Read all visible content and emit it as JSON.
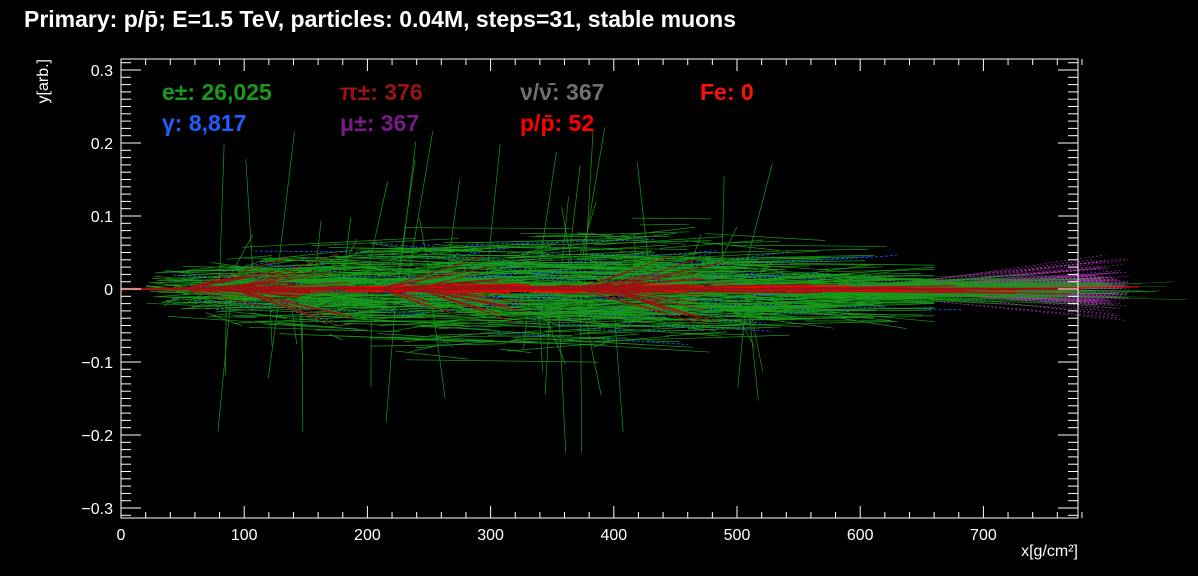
{
  "title": "Primary: p/p̄; E=1.5 TeV, particles: 0.04M, steps=31, stable muons",
  "colors": {
    "background": "#000000",
    "axis": "#ffffff",
    "electron": "#1a9a1a",
    "gamma": "#1f5fff",
    "pion": "#9a1414",
    "muon": "#7a1a8a",
    "muon_band": "#b03ab8",
    "neutrino": "#707070",
    "proton": "#ff0000",
    "iron": "#ff1010"
  },
  "chart_data": {
    "type": "scatter",
    "xlabel": "x[g/cm²]",
    "ylabel": "y[arb.]",
    "xlim": [
      0,
      780
    ],
    "ylim": [
      -0.31,
      0.31
    ],
    "x_ticks": [
      0,
      100,
      200,
      300,
      400,
      500,
      600,
      700
    ],
    "x_tick_labels": [
      "0",
      "100",
      "200",
      "300",
      "400",
      "500",
      "600",
      "700"
    ],
    "y_ticks": [
      -0.3,
      -0.2,
      -0.1,
      0,
      0.1,
      0.2,
      0.3
    ],
    "y_tick_labels": [
      "−0.3",
      "−0.2",
      "−0.1",
      "0",
      "0.1",
      "0.2",
      "0.3"
    ],
    "grid": false,
    "legend_placement": "top-left inside plot",
    "legend": [
      {
        "name": "e±",
        "count_label": "26,025",
        "text": "e±: 26,025",
        "color": "#1a9a1a"
      },
      {
        "name": "π±",
        "count_label": "376",
        "text": "π±: 376",
        "color": "#9a1414"
      },
      {
        "name": "ν/ν̄",
        "count_label": "367",
        "text": "ν/ν̄: 367",
        "color": "#707070"
      },
      {
        "name": "Fe",
        "count_label": "0",
        "text": "Fe: 0",
        "color": "#ff1010"
      },
      {
        "name": "γ",
        "count_label": "8,817",
        "text": "γ: 8,817",
        "color": "#1f5fff"
      },
      {
        "name": "μ±",
        "count_label": "367",
        "text": "μ±: 367",
        "color": "#7a1a8a"
      },
      {
        "name": "p/p̄",
        "count_label": "52",
        "text": "p/p̄: 52",
        "color": "#ff0000"
      }
    ],
    "series": [
      {
        "name": "e±",
        "description_type": "track bundle",
        "x_extent": [
          0,
          660
        ],
        "y_spread": 0.07
      },
      {
        "name": "γ",
        "description_type": "track bundle",
        "x_extent": [
          40,
          560
        ],
        "y_spread": 0.09
      },
      {
        "name": "π±",
        "description_type": "track bundle",
        "x_extent": [
          30,
          620
        ],
        "y_spread": 0.03
      },
      {
        "name": "μ±",
        "description_type": "track bundle",
        "x_extent": [
          600,
          780
        ],
        "y_spread": 0.045
      }
    ]
  }
}
